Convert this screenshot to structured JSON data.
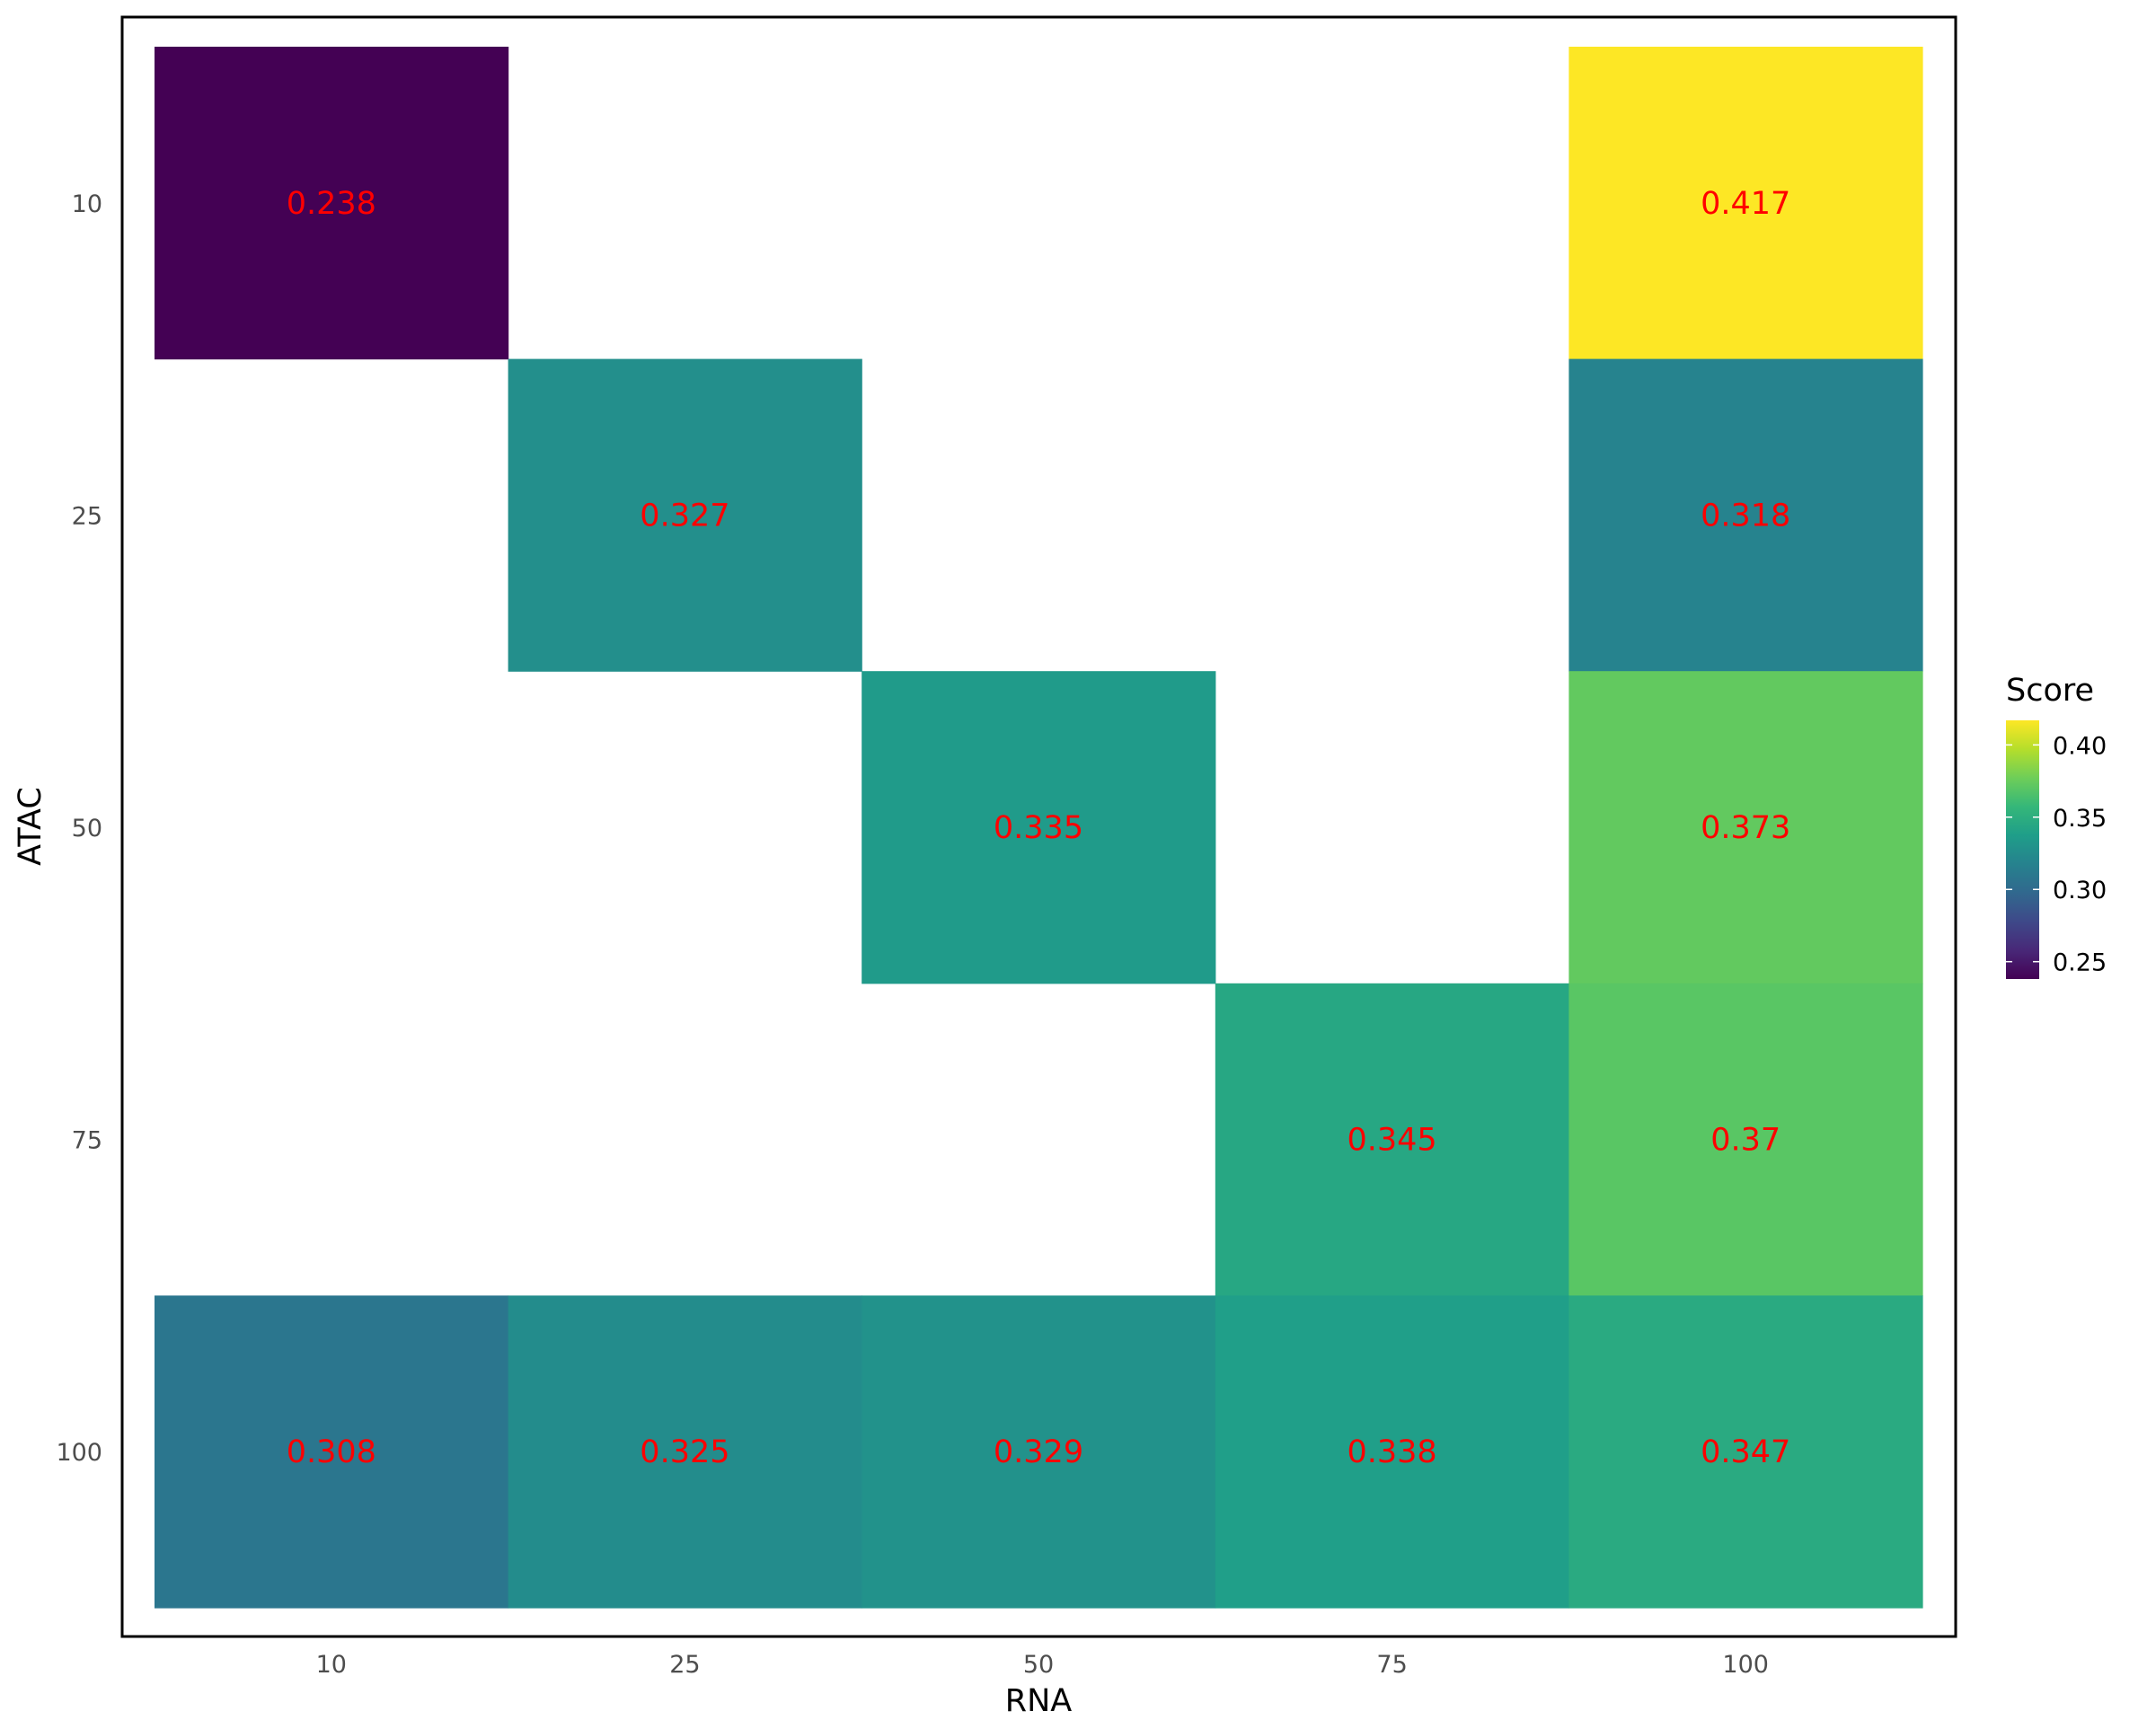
{
  "chart_data": {
    "type": "heatmap",
    "x_categories": [
      "10",
      "25",
      "50",
      "75",
      "100"
    ],
    "y_categories": [
      "10",
      "25",
      "50",
      "75",
      "100"
    ],
    "xlabel": "RNA",
    "ylabel": "ATAC",
    "cells": [
      {
        "x": "10",
        "y": "10",
        "value": 0.238,
        "label": "0.238"
      },
      {
        "x": "100",
        "y": "10",
        "value": 0.417,
        "label": "0.417"
      },
      {
        "x": "25",
        "y": "25",
        "value": 0.327,
        "label": "0.327"
      },
      {
        "x": "100",
        "y": "25",
        "value": 0.318,
        "label": "0.318"
      },
      {
        "x": "50",
        "y": "50",
        "value": 0.335,
        "label": "0.335"
      },
      {
        "x": "100",
        "y": "50",
        "value": 0.373,
        "label": "0.373"
      },
      {
        "x": "75",
        "y": "75",
        "value": 0.345,
        "label": "0.345"
      },
      {
        "x": "100",
        "y": "75",
        "value": 0.37,
        "label": "0.37"
      },
      {
        "x": "10",
        "y": "100",
        "value": 0.308,
        "label": "0.308"
      },
      {
        "x": "25",
        "y": "100",
        "value": 0.325,
        "label": "0.325"
      },
      {
        "x": "50",
        "y": "100",
        "value": 0.329,
        "label": "0.329"
      },
      {
        "x": "75",
        "y": "100",
        "value": 0.338,
        "label": "0.338"
      },
      {
        "x": "100",
        "y": "100",
        "value": 0.347,
        "label": "0.347"
      }
    ],
    "legend": {
      "title": "Score",
      "ticks": [
        0.25,
        0.3,
        0.35,
        0.4
      ],
      "tick_labels": [
        "0.25",
        "0.30",
        "0.35",
        "0.40"
      ],
      "range": [
        0.238,
        0.417
      ],
      "placement": "right",
      "colormap": "viridis"
    },
    "cell_label_color": "#ff0000",
    "grid": false
  }
}
